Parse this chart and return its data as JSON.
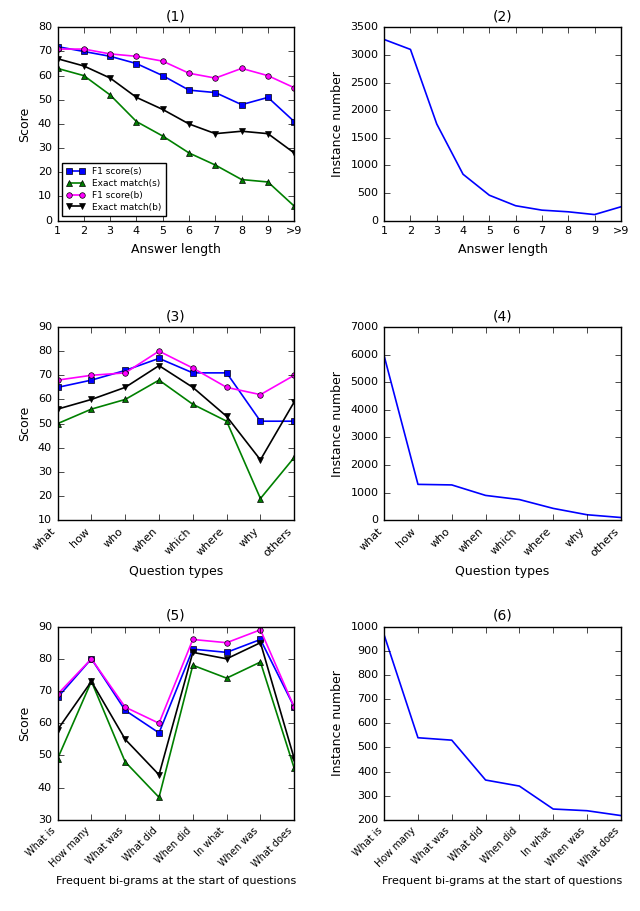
{
  "plot1": {
    "title": "(1)",
    "xlabel": "Answer length",
    "ylabel": "Score",
    "xticks": [
      "1",
      "2",
      "3",
      "4",
      "5",
      "6",
      "7",
      "8",
      "9",
      ">9"
    ],
    "ylim": [
      0,
      80
    ],
    "yticks": [
      0,
      10,
      20,
      30,
      40,
      50,
      60,
      70,
      80
    ],
    "series": {
      "F1 score(s)": {
        "color": "blue",
        "marker": "s",
        "data": [
          72,
          70,
          68,
          65,
          60,
          54,
          53,
          48,
          51,
          41
        ]
      },
      "Exact match(s)": {
        "color": "green",
        "marker": "^",
        "data": [
          63,
          60,
          52,
          41,
          35,
          28,
          23,
          17,
          16,
          6
        ]
      },
      "F1 score(b)": {
        "color": "magenta",
        "marker": "o",
        "data": [
          71,
          71,
          69,
          68,
          66,
          61,
          59,
          63,
          60,
          55
        ]
      },
      "Exact match(b)": {
        "color": "black",
        "marker": "v",
        "data": [
          67,
          64,
          59,
          51,
          46,
          40,
          36,
          37,
          36,
          28
        ]
      }
    }
  },
  "plot2": {
    "title": "(2)",
    "xlabel": "Answer length",
    "ylabel": "Instance number",
    "xticks": [
      "1",
      "2",
      "3",
      "4",
      "5",
      "6",
      "7",
      "8",
      "9",
      ">9"
    ],
    "ylim": [
      0,
      3500
    ],
    "yticks": [
      0,
      500,
      1000,
      1500,
      2000,
      2500,
      3000,
      3500
    ],
    "data": [
      3280,
      3100,
      1750,
      840,
      460,
      270,
      190,
      160,
      110,
      250
    ]
  },
  "plot3": {
    "title": "(3)",
    "xlabel": "Question types",
    "ylabel": "Score",
    "xticks": [
      "what",
      "how",
      "who",
      "when",
      "which",
      "where",
      "why",
      "others"
    ],
    "ylim": [
      10,
      90
    ],
    "yticks": [
      10,
      20,
      30,
      40,
      50,
      60,
      70,
      80,
      90
    ],
    "series": {
      "F1 score(s)": {
        "color": "blue",
        "marker": "s",
        "data": [
          65,
          68,
          72,
          77,
          71,
          71,
          51,
          51
        ]
      },
      "Exact match(s)": {
        "color": "green",
        "marker": "^",
        "data": [
          50,
          56,
          60,
          68,
          58,
          51,
          19,
          36
        ]
      },
      "F1 score(b)": {
        "color": "magenta",
        "marker": "o",
        "data": [
          68,
          70,
          71,
          80,
          73,
          65,
          62,
          70
        ]
      },
      "Exact match(b)": {
        "color": "black",
        "marker": "v",
        "data": [
          56,
          60,
          65,
          74,
          65,
          53,
          35,
          59
        ]
      }
    }
  },
  "plot4": {
    "title": "(4)",
    "xlabel": "Question types",
    "ylabel": "Instance number",
    "xticks": [
      "what",
      "how",
      "who",
      "when",
      "which",
      "where",
      "why",
      "others"
    ],
    "ylim": [
      0,
      7000
    ],
    "yticks": [
      0,
      1000,
      2000,
      3000,
      4000,
      5000,
      6000,
      7000
    ],
    "data": [
      5950,
      1300,
      1280,
      900,
      750,
      430,
      200,
      100
    ]
  },
  "plot5": {
    "title": "(5)",
    "xlabel": "Frequent bi-grams at the start of questions",
    "ylabel": "Score",
    "xticks": [
      "What is",
      "How many",
      "What was",
      "What did",
      "When did",
      "In what",
      "When was",
      "What does"
    ],
    "ylim": [
      30,
      90
    ],
    "yticks": [
      30,
      40,
      50,
      60,
      70,
      80,
      90
    ],
    "series": {
      "F1 score(s)": {
        "color": "blue",
        "marker": "s",
        "data": [
          68,
          80,
          64,
          57,
          83,
          82,
          86,
          65
        ]
      },
      "Exact match(s)": {
        "color": "green",
        "marker": "^",
        "data": [
          49,
          73,
          48,
          37,
          78,
          74,
          79,
          46
        ]
      },
      "F1 score(b)": {
        "color": "magenta",
        "marker": "o",
        "data": [
          69,
          80,
          65,
          60,
          86,
          85,
          89,
          65
        ]
      },
      "Exact match(b)": {
        "color": "black",
        "marker": "v",
        "data": [
          58,
          73,
          55,
          44,
          82,
          80,
          85,
          49
        ]
      }
    }
  },
  "plot6": {
    "title": "(6)",
    "xlabel": "Frequent bi-grams at the start of questions",
    "ylabel": "Instance number",
    "xticks": [
      "What is",
      "How many",
      "What was",
      "What did",
      "When did",
      "In what",
      "When was",
      "What does"
    ],
    "ylim": [
      200,
      1000
    ],
    "yticks": [
      200,
      300,
      400,
      500,
      600,
      700,
      800,
      900,
      1000
    ],
    "data": [
      965,
      540,
      530,
      365,
      340,
      245,
      238,
      218
    ]
  }
}
